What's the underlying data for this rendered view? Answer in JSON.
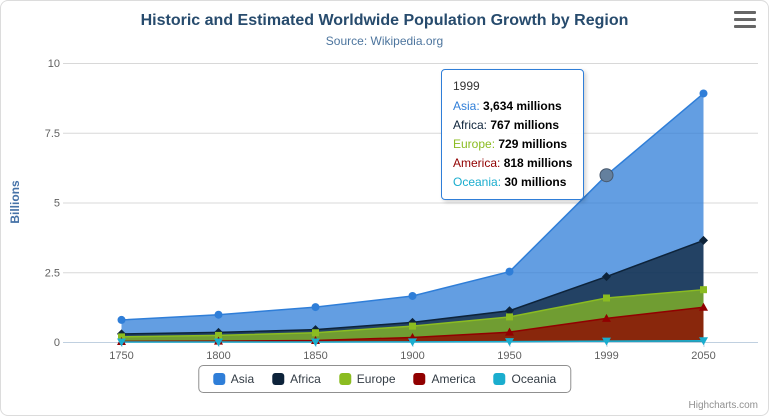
{
  "credits": "Highcharts.com",
  "chart_data": {
    "type": "area",
    "stacked": true,
    "title": "Historic and Estimated Worldwide Population Growth by Region",
    "subtitle": "Source: Wikipedia.org",
    "categories": [
      "1750",
      "1800",
      "1850",
      "1900",
      "1950",
      "1999",
      "2050"
    ],
    "value_unit": "millions",
    "ylabel": "Billions",
    "ylim": [
      0,
      10
    ],
    "yticks": [
      0,
      2.5,
      5,
      7.5,
      10
    ],
    "grid": true,
    "legend_position": "bottom",
    "series": [
      {
        "name": "Asia",
        "color": "#2f7ed8",
        "marker": "circle",
        "values": [
          502,
          635,
          809,
          947,
          1402,
          3634,
          5268
        ]
      },
      {
        "name": "Africa",
        "color": "#0d233a",
        "marker": "diamond",
        "values": [
          106,
          107,
          111,
          133,
          221,
          767,
          1766
        ]
      },
      {
        "name": "Europe",
        "color": "#8bbc21",
        "marker": "square",
        "values": [
          163,
          203,
          276,
          408,
          547,
          729,
          628
        ]
      },
      {
        "name": "America",
        "color": "#910000",
        "marker": "triangle",
        "values": [
          18,
          31,
          54,
          156,
          339,
          818,
          1201
        ]
      },
      {
        "name": "Oceania",
        "color": "#1aadce",
        "marker": "triangle-down",
        "values": [
          2,
          2,
          2,
          6,
          13,
          30,
          46
        ]
      }
    ]
  },
  "tooltip": {
    "header": "1999",
    "hover": {
      "series": "Asia",
      "category": "1999"
    },
    "rows": [
      {
        "name": "Asia",
        "color": "#2f7ed8",
        "value": "3,634 millions"
      },
      {
        "name": "Africa",
        "color": "#0d233a",
        "value": "767 millions"
      },
      {
        "name": "Europe",
        "color": "#8bbc21",
        "value": "729 millions"
      },
      {
        "name": "America",
        "color": "#910000",
        "value": "818 millions"
      },
      {
        "name": "Oceania",
        "color": "#1aadce",
        "value": "30 millions"
      }
    ]
  }
}
